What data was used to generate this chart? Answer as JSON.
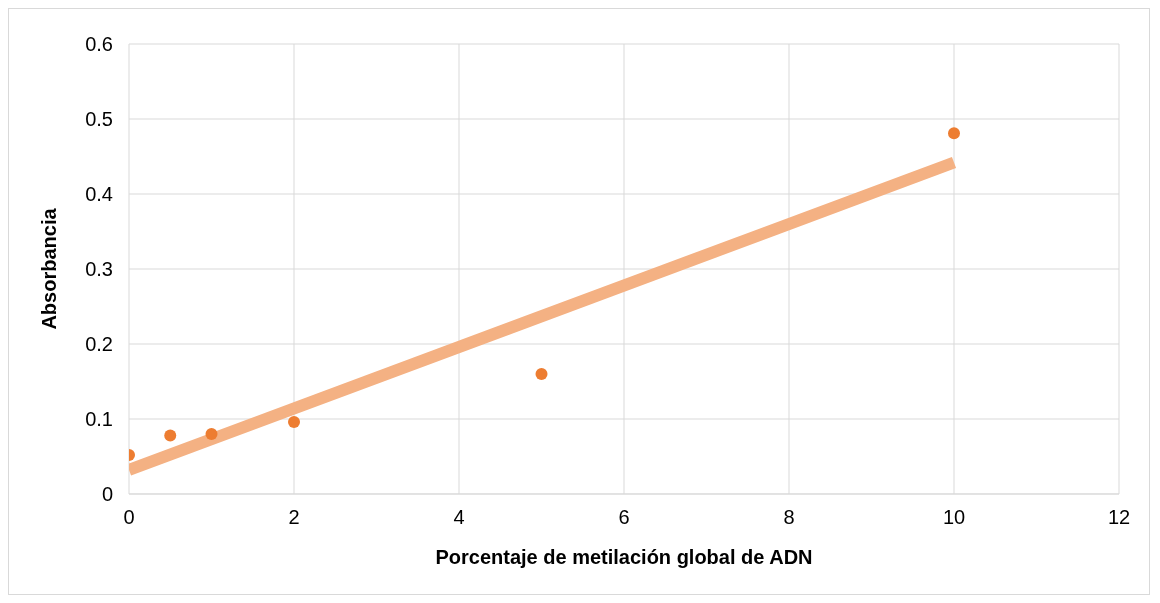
{
  "chart_data": {
    "type": "scatter",
    "xlabel": "Porcentaje de metilación global de ADN",
    "ylabel": "Absorbancia",
    "series": [
      {
        "type": "line",
        "color": "#f4b183",
        "x": [
          0,
          10
        ],
        "values": [
          0.032,
          0.442
        ]
      },
      {
        "color": "#ed7d31",
        "marker": "circle",
        "x": [
          0,
          0.5,
          1,
          2,
          5,
          10
        ],
        "values": [
          0.052,
          0.078,
          0.08,
          0.096,
          0.16,
          0.481
        ]
      }
    ],
    "xlim": [
      0,
      12
    ],
    "xticks": [
      0,
      2,
      4,
      6,
      8,
      10,
      12
    ],
    "ylim": [
      0,
      0.6
    ],
    "yticks": [
      0,
      0.1,
      0.2,
      0.3,
      0.4,
      0.5,
      0.6
    ],
    "grid": true
  }
}
